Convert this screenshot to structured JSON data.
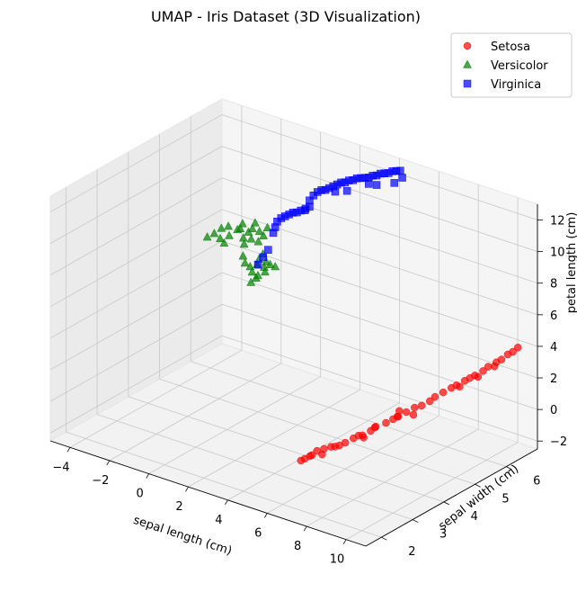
{
  "chart_data": {
    "type": "scatter",
    "dimensions": 3,
    "title": "UMAP - Iris Dataset (3D Visualization)",
    "xlabel": "sepal length (cm)",
    "ylabel": "sepal width (cm)",
    "zlabel": "petal length (cm)",
    "xlim": [
      -5,
      11
    ],
    "ylim": [
      1.5,
      7
    ],
    "zlim": [
      -2.5,
      13
    ],
    "x_ticks": [
      -4,
      -2,
      0,
      2,
      4,
      6,
      8,
      10
    ],
    "y_ticks": [
      2,
      3,
      4,
      5,
      6
    ],
    "z_ticks": [
      -2,
      0,
      2,
      4,
      6,
      8,
      10,
      12
    ],
    "grid": true,
    "legend_position": "top-right",
    "series": [
      {
        "name": "Setosa",
        "marker": "circle",
        "color": "#ff0000",
        "points": [
          [
            6.6,
            2.2,
            0.3
          ],
          [
            6.8,
            2.2,
            0.5
          ],
          [
            6.9,
            2.3,
            0.6
          ],
          [
            7.0,
            2.3,
            0.7
          ],
          [
            7.1,
            2.4,
            0.9
          ],
          [
            7.3,
            2.5,
            1.0
          ],
          [
            7.5,
            2.6,
            1.1
          ],
          [
            7.7,
            2.6,
            1.2
          ],
          [
            7.6,
            2.8,
            1.0
          ],
          [
            7.9,
            2.8,
            1.3
          ],
          [
            8.0,
            3.0,
            1.4
          ],
          [
            8.1,
            3.1,
            1.5
          ],
          [
            8.3,
            3.1,
            1.6
          ],
          [
            8.4,
            3.3,
            1.7
          ],
          [
            8.5,
            3.4,
            1.9
          ],
          [
            8.6,
            3.3,
            2.0
          ],
          [
            8.7,
            3.6,
            2.0
          ],
          [
            8.9,
            3.7,
            2.2
          ],
          [
            9.0,
            3.8,
            2.3
          ],
          [
            8.8,
            3.9,
            2.1
          ],
          [
            9.1,
            4.0,
            2.4
          ],
          [
            9.2,
            4.2,
            2.5
          ],
          [
            9.4,
            4.3,
            2.6
          ],
          [
            9.5,
            4.5,
            2.7
          ],
          [
            9.6,
            4.6,
            2.9
          ],
          [
            9.7,
            4.8,
            3.0
          ],
          [
            9.8,
            5.0,
            3.1
          ],
          [
            9.9,
            5.1,
            3.2
          ],
          [
            10.0,
            5.3,
            3.3
          ],
          [
            10.1,
            5.4,
            3.4
          ],
          [
            10.2,
            5.5,
            3.5
          ],
          [
            10.3,
            5.7,
            3.6
          ],
          [
            10.4,
            5.8,
            3.8
          ],
          [
            10.5,
            6.0,
            3.9
          ],
          [
            10.6,
            6.1,
            4.0
          ],
          [
            10.6,
            6.3,
            4.1
          ],
          [
            10.7,
            6.4,
            4.2
          ],
          [
            10.8,
            6.5,
            4.4
          ],
          [
            9.3,
            4.1,
            2.2
          ],
          [
            8.2,
            3.2,
            1.3
          ],
          [
            9.9,
            5.2,
            3.0
          ],
          [
            10.2,
            5.6,
            3.3
          ],
          [
            7.2,
            2.5,
            0.6
          ],
          [
            8.9,
            3.9,
            2.5
          ],
          [
            10.4,
            6.0,
            3.6
          ]
        ]
      },
      {
        "name": "Versicolor",
        "marker": "triangle",
        "color": "#008000",
        "points": [
          [
            -4.8,
            6.4,
            5.0
          ],
          [
            -4.6,
            6.5,
            5.2
          ],
          [
            -4.4,
            6.6,
            5.5
          ],
          [
            -4.3,
            6.5,
            5.0
          ],
          [
            -4.2,
            6.7,
            5.6
          ],
          [
            -4.0,
            6.6,
            5.2
          ],
          [
            -3.9,
            6.8,
            5.4
          ],
          [
            -3.8,
            6.9,
            5.7
          ],
          [
            -4.1,
            6.5,
            4.8
          ],
          [
            -3.6,
            6.8,
            5.0
          ],
          [
            -3.5,
            6.9,
            5.3
          ],
          [
            -3.3,
            6.9,
            5.6
          ],
          [
            -3.2,
            6.8,
            5.1
          ],
          [
            -3.1,
            7.0,
            5.4
          ],
          [
            -3.4,
            6.7,
            4.8
          ],
          [
            -3.0,
            6.9,
            4.9
          ],
          [
            -2.9,
            7.0,
            5.2
          ],
          [
            -3.3,
            6.6,
            4.2
          ],
          [
            -3.2,
            6.6,
            3.8
          ],
          [
            -3.1,
            6.7,
            3.5
          ],
          [
            -3.0,
            6.7,
            3.2
          ],
          [
            -2.9,
            6.8,
            3.6
          ],
          [
            -2.8,
            6.8,
            4.0
          ],
          [
            -2.7,
            6.9,
            3.4
          ],
          [
            -2.6,
            6.9,
            3.8
          ],
          [
            -2.8,
            6.7,
            2.9
          ],
          [
            -2.7,
            6.7,
            3.1
          ],
          [
            -2.5,
            6.8,
            3.3
          ],
          [
            -2.4,
            6.9,
            3.7
          ],
          [
            -2.6,
            6.8,
            4.4
          ],
          [
            -2.3,
            7.0,
            3.5
          ],
          [
            -2.9,
            6.6,
            2.7
          ],
          [
            -3.6,
            6.7,
            5.7
          ],
          [
            -3.0,
            6.8,
            6.2
          ],
          [
            -2.7,
            7.0,
            5.8
          ]
        ]
      },
      {
        "name": "Virginica",
        "marker": "square",
        "color": "#0000ff",
        "points": [
          [
            -2.7,
            6.7,
            3.8
          ],
          [
            -2.6,
            6.8,
            4.2
          ],
          [
            -2.5,
            6.9,
            4.6
          ],
          [
            -2.4,
            7.0,
            5.6
          ],
          [
            -2.3,
            7.0,
            6.0
          ],
          [
            -2.2,
            7.0,
            6.4
          ],
          [
            -2.0,
            7.0,
            6.7
          ],
          [
            -1.8,
            7.0,
            6.9
          ],
          [
            -1.6,
            7.0,
            7.1
          ],
          [
            -1.4,
            7.0,
            7.3
          ],
          [
            -1.2,
            7.0,
            7.4
          ],
          [
            -1.0,
            7.0,
            7.6
          ],
          [
            -0.8,
            7.0,
            7.7
          ],
          [
            -0.6,
            6.9,
            8.0
          ],
          [
            -0.4,
            6.9,
            8.6
          ],
          [
            -0.2,
            6.9,
            9.0
          ],
          [
            0.0,
            6.9,
            9.3
          ],
          [
            0.2,
            6.9,
            9.5
          ],
          [
            0.4,
            6.9,
            9.6
          ],
          [
            0.6,
            6.9,
            9.8
          ],
          [
            0.8,
            6.9,
            10.0
          ],
          [
            1.0,
            6.9,
            10.2
          ],
          [
            1.2,
            6.9,
            10.4
          ],
          [
            1.4,
            6.9,
            10.5
          ],
          [
            1.6,
            6.9,
            10.7
          ],
          [
            1.8,
            6.9,
            10.8
          ],
          [
            2.0,
            6.9,
            11.0
          ],
          [
            2.2,
            6.9,
            11.1
          ],
          [
            2.4,
            6.9,
            11.2
          ],
          [
            2.6,
            6.9,
            11.3
          ],
          [
            2.8,
            6.9,
            11.5
          ],
          [
            3.0,
            6.9,
            11.6
          ],
          [
            3.2,
            6.9,
            11.8
          ],
          [
            3.4,
            6.9,
            11.9
          ],
          [
            3.6,
            6.9,
            12.0
          ],
          [
            3.8,
            6.9,
            12.2
          ],
          [
            4.0,
            6.9,
            12.3
          ],
          [
            4.2,
            6.9,
            12.4
          ],
          [
            3.0,
            6.9,
            11.0
          ],
          [
            3.9,
            6.9,
            11.5
          ],
          [
            4.3,
            6.9,
            12.0
          ],
          [
            1.5,
            6.9,
            10.0
          ],
          [
            2.6,
            6.9,
            10.9
          ],
          [
            -0.4,
            6.9,
            8.2
          ],
          [
            0.9,
            6.9,
            9.7
          ]
        ]
      }
    ]
  }
}
